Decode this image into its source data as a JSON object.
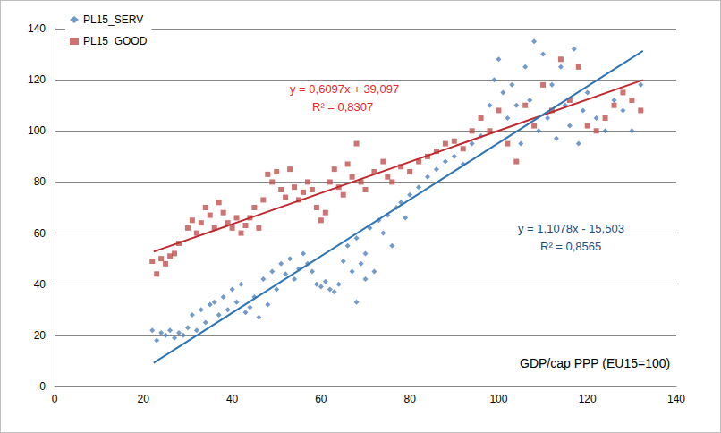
{
  "chart_data": {
    "type": "scatter",
    "xlabel": "GDP/cap PPP (EU15=100)",
    "xlim": [
      0,
      140
    ],
    "xticks": [
      0,
      20,
      40,
      60,
      80,
      100,
      120,
      140
    ],
    "ylim": [
      0,
      140
    ],
    "yticks": [
      0,
      20,
      40,
      60,
      80,
      100,
      120,
      140
    ],
    "grid": true,
    "legend": "upper left",
    "series": [
      {
        "name": "PL15_SERV",
        "type": "scatter",
        "marker": "diamond",
        "color": "#4f81bd",
        "x": [
          22,
          23,
          24,
          25,
          26,
          27,
          28,
          29,
          30,
          31,
          32,
          33,
          34,
          35,
          36,
          37,
          38,
          39,
          40,
          41,
          42,
          43,
          44,
          45,
          46,
          47,
          48,
          49,
          50,
          51,
          52,
          53,
          54,
          55,
          56,
          57,
          58,
          59,
          60,
          61,
          62,
          63,
          64,
          65,
          66,
          67,
          68,
          68,
          69,
          70,
          70,
          71,
          72,
          73,
          74,
          75,
          76,
          77,
          78,
          79,
          80,
          82,
          84,
          86,
          88,
          90,
          92,
          94,
          96,
          98,
          99,
          100,
          101,
          102,
          103,
          104,
          105,
          106,
          107,
          108,
          109,
          110,
          111,
          112,
          113,
          114,
          115,
          116,
          117,
          118,
          119,
          120,
          122,
          124,
          126,
          128,
          130,
          132
        ],
        "values": [
          22,
          18,
          21,
          20,
          22,
          19,
          21,
          20,
          23,
          28,
          22,
          30,
          25,
          32,
          33,
          28,
          35,
          30,
          38,
          33,
          40,
          29,
          31,
          35,
          27,
          42,
          32,
          45,
          38,
          48,
          44,
          50,
          42,
          46,
          52,
          48,
          45,
          40,
          39,
          41,
          38,
          37,
          40,
          49,
          55,
          45,
          58,
          33,
          48,
          52,
          42,
          62,
          45,
          65,
          60,
          67,
          55,
          70,
          72,
          66,
          75,
          78,
          82,
          85,
          88,
          90,
          87,
          95,
          98,
          110,
          120,
          128,
          115,
          105,
          118,
          110,
          95,
          125,
          112,
          135,
          100,
          130,
          105,
          118,
          97,
          125,
          110,
          102,
          132,
          95,
          108,
          115,
          105,
          100,
          112,
          108,
          100,
          118
        ]
      },
      {
        "name": "PL15_GOOD",
        "type": "scatter",
        "marker": "square",
        "color": "#c0504d",
        "x": [
          22,
          23,
          24,
          25,
          26,
          27,
          28,
          30,
          31,
          32,
          33,
          34,
          35,
          36,
          37,
          38,
          39,
          40,
          41,
          42,
          43,
          44,
          45,
          46,
          47,
          48,
          49,
          50,
          51,
          52,
          53,
          54,
          55,
          56,
          57,
          58,
          59,
          60,
          61,
          62,
          63,
          64,
          65,
          66,
          67,
          68,
          69,
          70,
          72,
          74,
          75,
          76,
          78,
          80,
          82,
          84,
          86,
          88,
          90,
          92,
          94,
          96,
          98,
          100,
          102,
          104,
          106,
          108,
          110,
          112,
          114,
          116,
          118,
          120,
          122,
          124,
          126,
          128,
          130,
          132
        ],
        "values": [
          49,
          44,
          50,
          48,
          51,
          52,
          56,
          62,
          65,
          60,
          64,
          70,
          67,
          62,
          72,
          68,
          64,
          62,
          66,
          60,
          63,
          66,
          70,
          62,
          73,
          83,
          80,
          84,
          77,
          74,
          85,
          78,
          73,
          76,
          80,
          77,
          70,
          65,
          68,
          80,
          85,
          78,
          75,
          87,
          82,
          95,
          80,
          77,
          84,
          88,
          82,
          80,
          86,
          84,
          88,
          90,
          92,
          95,
          96,
          93,
          100,
          105,
          100,
          108,
          95,
          88,
          110,
          102,
          118,
          108,
          128,
          112,
          125,
          102,
          100,
          105,
          110,
          115,
          112,
          108
        ]
      },
      {
        "type": "line",
        "line_style": "solid",
        "color": "#c0282d",
        "x": [
          22.3,
          132.5
        ],
        "values": [
          52.7,
          119.9
        ],
        "annotation": [
          "y = 0,6097x + 39,097",
          "R² = 0,8307"
        ]
      },
      {
        "type": "line",
        "line_style": "solid",
        "color": "#2e75b6",
        "x": [
          22.3,
          132.5
        ],
        "values": [
          9.2,
          131.3
        ],
        "annotation": [
          "y = 1,1078x - 15,503",
          "R² = 0,8565"
        ]
      }
    ]
  }
}
